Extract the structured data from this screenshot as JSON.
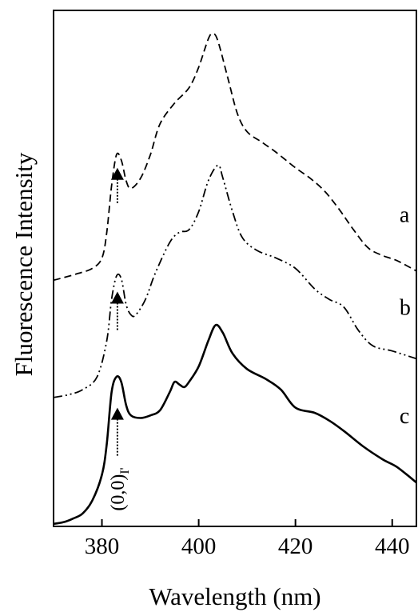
{
  "chart_data": {
    "type": "line",
    "title": "",
    "xlabel": "Wavelength (nm)",
    "ylabel": "Fluorescence Intensity",
    "xlim": [
      370,
      445
    ],
    "ylim": [
      0,
      100
    ],
    "x_ticks": [
      380,
      400,
      420,
      440
    ],
    "y_ticks": [],
    "grid": false,
    "legend": "none",
    "series": [
      {
        "name": "a",
        "style": "dashed",
        "color": "#000000",
        "points": [
          [
            370,
            47.7
          ],
          [
            372,
            48.2
          ],
          [
            375,
            49.0
          ],
          [
            378,
            50.0
          ],
          [
            380,
            52.0
          ],
          [
            381,
            57.0
          ],
          [
            382,
            66.0
          ],
          [
            383,
            72.0
          ],
          [
            384,
            71.0
          ],
          [
            385,
            67.0
          ],
          [
            386,
            65.5
          ],
          [
            388,
            67.5
          ],
          [
            390,
            72.0
          ],
          [
            392,
            78.0
          ],
          [
            395,
            82.0
          ],
          [
            398,
            85.0
          ],
          [
            400,
            89.0
          ],
          [
            402,
            94.5
          ],
          [
            403,
            95.5
          ],
          [
            404,
            94.0
          ],
          [
            406,
            87.0
          ],
          [
            408,
            80.0
          ],
          [
            410,
            76.5
          ],
          [
            413,
            74.5
          ],
          [
            416,
            72.5
          ],
          [
            420,
            69.5
          ],
          [
            423,
            67.5
          ],
          [
            426,
            65.0
          ],
          [
            429,
            61.5
          ],
          [
            432,
            57.5
          ],
          [
            435,
            54.0
          ],
          [
            438,
            52.5
          ],
          [
            441,
            51.5
          ],
          [
            445,
            49.5
          ]
        ]
      },
      {
        "name": "b",
        "style": "dash-dot-dot",
        "color": "#000000",
        "points": [
          [
            370,
            25.0
          ],
          [
            373,
            25.5
          ],
          [
            376,
            26.5
          ],
          [
            379,
            29.0
          ],
          [
            381,
            36.0
          ],
          [
            382,
            44.0
          ],
          [
            383,
            48.5
          ],
          [
            384,
            48.0
          ],
          [
            385,
            43.0
          ],
          [
            386,
            41.0
          ],
          [
            387,
            41.0
          ],
          [
            389,
            44.0
          ],
          [
            391,
            49.0
          ],
          [
            394,
            55.0
          ],
          [
            396,
            57.0
          ],
          [
            398,
            57.5
          ],
          [
            400,
            61.0
          ],
          [
            402,
            67.0
          ],
          [
            404,
            70.0
          ],
          [
            405,
            67.5
          ],
          [
            407,
            61.0
          ],
          [
            409,
            56.0
          ],
          [
            412,
            53.5
          ],
          [
            416,
            52.0
          ],
          [
            420,
            50.0
          ],
          [
            424,
            46.0
          ],
          [
            427,
            44.0
          ],
          [
            430,
            42.5
          ],
          [
            433,
            38.0
          ],
          [
            436,
            35.0
          ],
          [
            440,
            34.0
          ],
          [
            445,
            32.5
          ]
        ]
      },
      {
        "name": "c",
        "style": "solid",
        "color": "#000000",
        "points": [
          [
            370,
            0.5
          ],
          [
            372,
            0.8
          ],
          [
            374,
            1.5
          ],
          [
            376,
            2.5
          ],
          [
            378,
            5.0
          ],
          [
            380,
            10.0
          ],
          [
            381,
            16.0
          ],
          [
            382,
            26.0
          ],
          [
            383,
            29.0
          ],
          [
            384,
            28.0
          ],
          [
            385,
            23.5
          ],
          [
            386,
            21.5
          ],
          [
            388,
            21.0
          ],
          [
            390,
            21.5
          ],
          [
            392,
            22.5
          ],
          [
            394,
            26.0
          ],
          [
            395,
            28.0
          ],
          [
            396,
            27.5
          ],
          [
            397,
            27.0
          ],
          [
            398,
            28.0
          ],
          [
            400,
            31.0
          ],
          [
            402,
            36.0
          ],
          [
            403.5,
            39.0
          ],
          [
            405,
            37.5
          ],
          [
            407,
            33.5
          ],
          [
            410,
            30.5
          ],
          [
            414,
            28.5
          ],
          [
            417,
            26.5
          ],
          [
            420,
            23.0
          ],
          [
            424,
            22.0
          ],
          [
            427,
            20.5
          ],
          [
            430,
            18.5
          ],
          [
            434,
            15.5
          ],
          [
            438,
            13.0
          ],
          [
            441,
            11.5
          ],
          [
            445,
            8.5
          ]
        ]
      }
    ],
    "curve_labels": [
      {
        "text": "a",
        "x": 441.5,
        "y": 59
      },
      {
        "text": "b",
        "x": 441.5,
        "y": 41
      },
      {
        "text": "c",
        "x": 441.5,
        "y": 20
      }
    ],
    "markers": [
      {
        "x": 383.2,
        "y_tip": 69.5,
        "y_base": 62.5
      },
      {
        "x": 383.2,
        "y_tip": 45.5,
        "y_base": 38.0
      },
      {
        "x": 383.2,
        "y_tip": 23.0,
        "y_base": 13.5
      }
    ],
    "annotation": {
      "text": "(0,0)",
      "subscript": "I'",
      "x": 383.2,
      "y": 3
    }
  }
}
